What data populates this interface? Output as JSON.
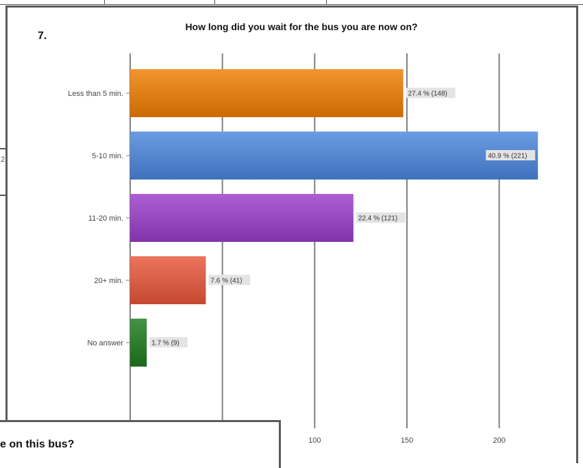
{
  "question": {
    "number": "7.",
    "title": "How long did you wait for the bus you are now on?"
  },
  "background_fragment_text": "2",
  "next_question_fragment": "e on this bus?",
  "chart_data": {
    "type": "bar",
    "orientation": "horizontal",
    "title": "How long did you wait for the bus you are now on?",
    "categories": [
      "Less than 5 min.",
      "5-10 min.",
      "11-20 min.",
      "20+ min.",
      "No answer"
    ],
    "values": [
      148,
      221,
      121,
      41,
      9
    ],
    "percent_labels": [
      "27.4 % (148)",
      "40.9 % (221)",
      "22.4 % (121)",
      "7.6 % (41)",
      "1.7 % (9)"
    ],
    "colors": [
      "#f07d00",
      "#4a86dd",
      "#9a3cc8",
      "#e8553a",
      "#1d7a1d"
    ],
    "x_ticks": [
      100,
      150,
      200
    ],
    "xlim": [
      0,
      225
    ],
    "grid": true
  }
}
